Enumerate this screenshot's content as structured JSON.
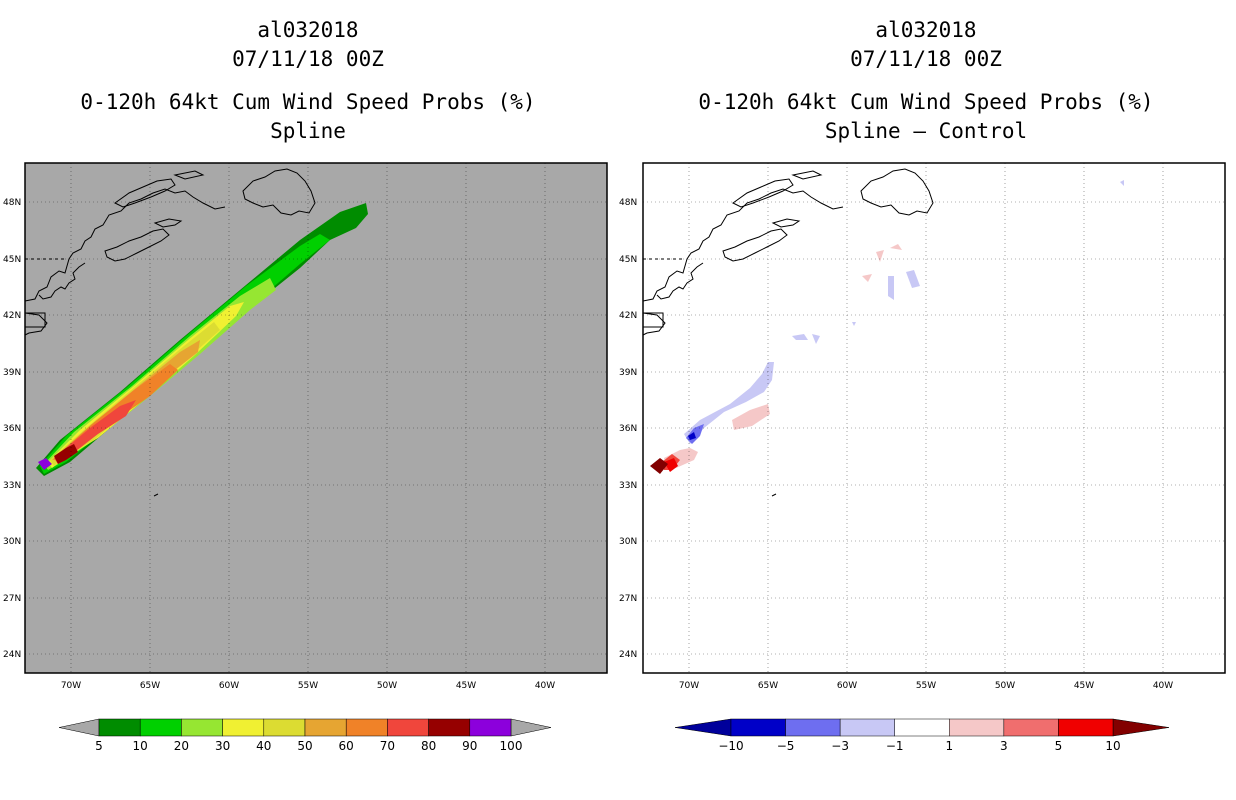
{
  "panels": [
    {
      "storm": "al032018",
      "date": "07/11/18 00Z",
      "product": "0-120h 64kt Cum Wind Speed Probs (%)",
      "subtitle": "Spline",
      "background": "#a8a8a8",
      "colorbar": {
        "labels": [
          "5",
          "10",
          "20",
          "30",
          "40",
          "50",
          "60",
          "70",
          "80",
          "90",
          "100"
        ],
        "colors": [
          "#008c00",
          "#00d000",
          "#96e632",
          "#f0f032",
          "#dcdc32",
          "#e6a532",
          "#f08228",
          "#f0463c",
          "#960000",
          "#8c00dc"
        ],
        "under": "#a8a8a8",
        "over": "#a8a8a8"
      }
    },
    {
      "storm": "al032018",
      "date": "07/11/18 00Z",
      "product": "0-120h 64kt Cum Wind Speed Probs (%)",
      "subtitle": "Spline – Control",
      "background": "#ffffff",
      "colorbar": {
        "labels": [
          "−10",
          "−5",
          "−3",
          "−1",
          "1",
          "3",
          "5",
          "10"
        ],
        "colors": [
          "#0000c8",
          "#6e6ef0",
          "#c8c8f5",
          "#ffffff",
          "#f5c8c8",
          "#f06e6e",
          "#f00000"
        ],
        "under": "#00009b",
        "over": "#820000"
      }
    }
  ],
  "axes": {
    "lat_labels": [
      "48N",
      "45N",
      "42N",
      "39N",
      "36N",
      "33N",
      "30N",
      "27N",
      "24N"
    ],
    "lon_labels": [
      "70W",
      "65W",
      "60W",
      "55W",
      "50W",
      "45W",
      "40W"
    ]
  }
}
